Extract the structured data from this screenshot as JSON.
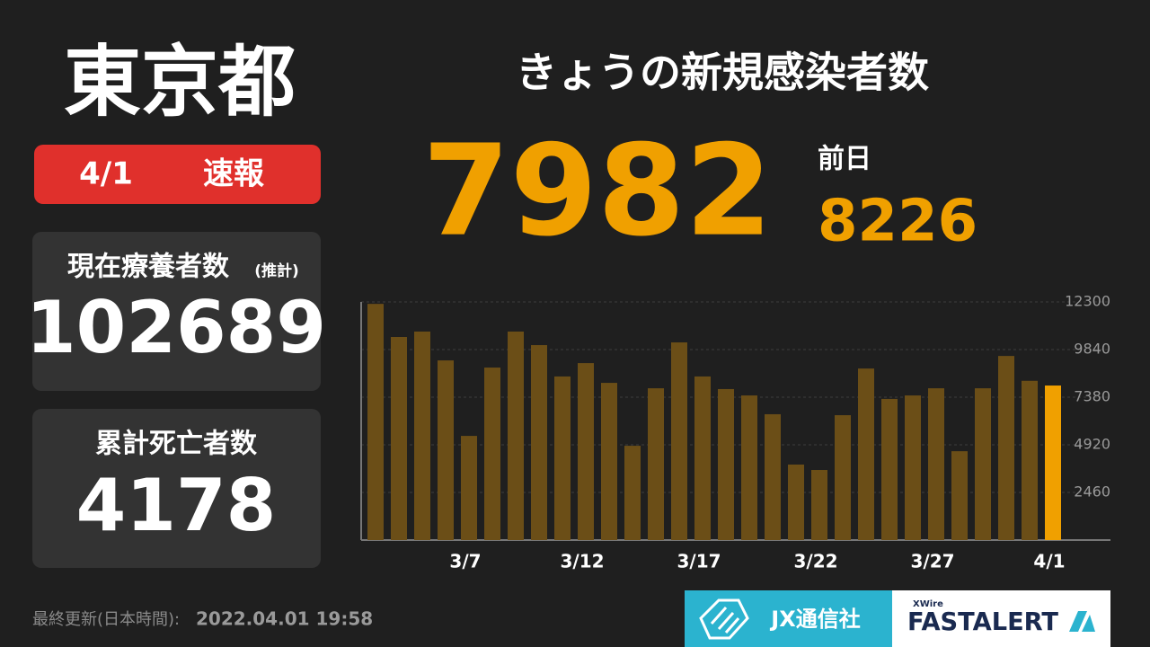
{
  "header": {
    "region": "東京都",
    "badge_date": "4/1",
    "badge_label": "速報"
  },
  "headline": {
    "title": "きょうの新規感染者数",
    "today_value": 7982,
    "prev_label": "前日",
    "prev_value": 8226
  },
  "panels": [
    {
      "label": "現在療養者数",
      "note": "(推計)",
      "value": 102689
    },
    {
      "label": "累計死亡者数",
      "value": 4178
    }
  ],
  "footer": {
    "updated_label": "最終更新(日本時間):",
    "updated_time": "2022.04.01 19:58"
  },
  "logos": {
    "jx": "JX通信社",
    "xwire": "XWire",
    "fastalert": "FASTALERT"
  },
  "chart_data": {
    "type": "bar",
    "categories": [
      null,
      null,
      null,
      null,
      "3/7",
      null,
      null,
      null,
      null,
      "3/12",
      null,
      null,
      null,
      null,
      "3/17",
      null,
      null,
      null,
      null,
      "3/22",
      null,
      null,
      null,
      null,
      "3/27",
      null,
      null,
      null,
      null,
      "4/1"
    ],
    "values": [
      12200,
      10490,
      10770,
      9280,
      5380,
      8910,
      10770,
      10070,
      8450,
      9140,
      8120,
      4870,
      7840,
      10210,
      8450,
      7800,
      7470,
      6500,
      3900,
      3620,
      6450,
      8860,
      7290,
      7470,
      7840,
      4590,
      7840,
      9510,
      8226,
      7982
    ],
    "color": "#6b4e17",
    "last_color": "#f0a000",
    "ylim": [
      0,
      12300
    ],
    "yticks": [
      2460,
      4920,
      7380,
      9840,
      12300
    ],
    "grid": true
  }
}
